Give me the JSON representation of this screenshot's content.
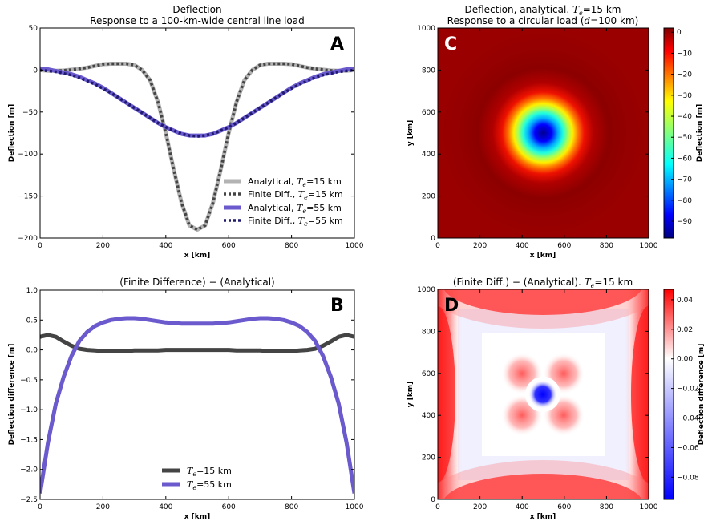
{
  "chart_data": [
    {
      "id": "A",
      "type": "line",
      "panel_letter": "A",
      "title": "Deflection",
      "subtitle": "Response to a 100-km-wide central line load",
      "xlabel": "x [km]",
      "ylabel": "Deflection [m]",
      "xlim": [
        0,
        1000
      ],
      "ylim": [
        -200,
        50
      ],
      "xticks": [
        "0",
        "200",
        "400",
        "600",
        "800",
        "1000"
      ],
      "yticks": [
        "50",
        "0",
        "−50",
        "−100",
        "−150",
        "−200"
      ],
      "legend_position": "lower-right",
      "grid": false,
      "x": [
        0,
        25,
        50,
        75,
        100,
        125,
        150,
        175,
        200,
        225,
        250,
        275,
        300,
        325,
        350,
        375,
        400,
        425,
        450,
        475,
        500,
        525,
        550,
        575,
        600,
        625,
        650,
        675,
        700,
        725,
        750,
        775,
        800,
        825,
        850,
        875,
        900,
        925,
        950,
        975,
        1000
      ],
      "series": [
        {
          "name": "Analytical, Te=15 km",
          "legend_main": "Analytical, ",
          "legend_te": "=15 km",
          "style": "solid",
          "color": "#b3b3b3",
          "values": [
            0,
            -0.8,
            -0.8,
            -0.5,
            0.5,
            1.5,
            3,
            5,
            7,
            7.5,
            7.5,
            7.5,
            6,
            0,
            -12,
            -38,
            -75,
            -118,
            -158,
            -185,
            -190,
            -185,
            -158,
            -118,
            -75,
            -38,
            -12,
            0,
            6,
            7.5,
            7.5,
            7.5,
            7,
            5,
            3,
            1.5,
            0.5,
            -0.5,
            -0.8,
            -0.8,
            0
          ]
        },
        {
          "name": "Finite Diff., Te=15 km",
          "legend_main": "Finite Diff., ",
          "legend_te": "=15 km",
          "style": "dotted",
          "color": "#444444",
          "values": [
            0,
            -0.8,
            -0.8,
            -0.5,
            0.5,
            1.5,
            3,
            5,
            7,
            7.5,
            7.5,
            7.5,
            6,
            0,
            -12,
            -38,
            -75,
            -118,
            -158,
            -185,
            -190,
            -185,
            -158,
            -118,
            -75,
            -38,
            -12,
            0,
            6,
            7.5,
            7.5,
            7.5,
            7,
            5,
            3,
            1.5,
            0.5,
            -0.5,
            -0.8,
            -0.8,
            0
          ]
        },
        {
          "name": "Analytical, Te=55 km",
          "legend_main": "Analytical, ",
          "legend_te": "=55 km",
          "style": "solid",
          "color": "#6a5acd",
          "values": [
            2,
            1,
            -1,
            -3,
            -5,
            -8,
            -12,
            -16,
            -21,
            -27,
            -33,
            -39,
            -45,
            -51,
            -57,
            -63,
            -68,
            -72,
            -76,
            -78,
            -78,
            -78,
            -76,
            -72,
            -68,
            -63,
            -57,
            -51,
            -45,
            -39,
            -33,
            -27,
            -21,
            -16,
            -12,
            -8,
            -5,
            -3,
            -1,
            1,
            2
          ]
        },
        {
          "name": "Finite Diff., Te=55 km",
          "legend_main": "Finite Diff., ",
          "legend_te": "=55 km",
          "style": "dotted",
          "color": "#1f1a6e",
          "values": [
            0,
            -1,
            -2,
            -4,
            -6,
            -9,
            -13,
            -17,
            -22,
            -27,
            -33,
            -39,
            -45,
            -51,
            -57,
            -63,
            -68,
            -72,
            -76,
            -78,
            -79,
            -78,
            -76,
            -72,
            -68,
            -63,
            -57,
            -51,
            -45,
            -39,
            -33,
            -27,
            -22,
            -17,
            -13,
            -9,
            -6,
            -4,
            -2,
            -1,
            0
          ]
        }
      ]
    },
    {
      "id": "B",
      "type": "line",
      "panel_letter": "B",
      "title": "(Finite Difference) − (Analytical)",
      "xlabel": "x [km]",
      "ylabel": "Deflection difference [m]",
      "xlim": [
        0,
        1000
      ],
      "ylim": [
        -2.5,
        1.0
      ],
      "xticks": [
        "0",
        "200",
        "400",
        "600",
        "800",
        "1000"
      ],
      "yticks": [
        "1.0",
        "0.5",
        "0.0",
        "−0.5",
        "−1.0",
        "−1.5",
        "−2.0",
        "−2.5"
      ],
      "legend_position": "lower-center",
      "grid": false,
      "x": [
        0,
        25,
        50,
        75,
        100,
        125,
        150,
        175,
        200,
        225,
        250,
        275,
        300,
        325,
        350,
        375,
        400,
        425,
        450,
        475,
        500,
        525,
        550,
        575,
        600,
        625,
        650,
        675,
        700,
        725,
        750,
        775,
        800,
        825,
        850,
        875,
        900,
        925,
        950,
        975,
        1000
      ],
      "series": [
        {
          "name": "Te=15 km",
          "legend_te": "=15 km",
          "color": "#444444",
          "values": [
            0.22,
            0.25,
            0.22,
            0.14,
            0.07,
            0.02,
            0.0,
            -0.01,
            -0.02,
            -0.02,
            -0.02,
            -0.02,
            -0.01,
            -0.01,
            -0.01,
            -0.01,
            0.0,
            0.0,
            0.0,
            0.0,
            0.0,
            0.0,
            0.0,
            0.0,
            0.0,
            -0.01,
            -0.01,
            -0.01,
            -0.01,
            -0.02,
            -0.02,
            -0.02,
            -0.02,
            -0.01,
            0.0,
            0.02,
            0.07,
            0.14,
            0.22,
            0.25,
            0.22
          ]
        },
        {
          "name": "Te=55 km",
          "legend_te": "=55 km",
          "color": "#6a5acd",
          "values": [
            -2.4,
            -1.55,
            -0.9,
            -0.45,
            -0.1,
            0.15,
            0.3,
            0.4,
            0.46,
            0.5,
            0.52,
            0.53,
            0.53,
            0.52,
            0.5,
            0.48,
            0.46,
            0.45,
            0.44,
            0.44,
            0.44,
            0.44,
            0.44,
            0.45,
            0.46,
            0.48,
            0.5,
            0.52,
            0.53,
            0.53,
            0.52,
            0.5,
            0.46,
            0.4,
            0.3,
            0.15,
            -0.1,
            -0.45,
            -0.9,
            -1.55,
            -2.4
          ]
        }
      ]
    },
    {
      "id": "C",
      "type": "heatmap",
      "panel_letter": "C",
      "title": "Deflection, analytical. ",
      "title_te": "=15 km",
      "subtitle": "Response to a circular load (",
      "subtitle_d": "=100 km)",
      "xlabel": "x [km]",
      "ylabel": "y [km]",
      "xlim": [
        0,
        1000
      ],
      "ylim": [
        0,
        1000
      ],
      "xticks": [
        "0",
        "200",
        "400",
        "600",
        "800",
        "1000"
      ],
      "yticks": [
        "0",
        "200",
        "400",
        "600",
        "800",
        "1000"
      ],
      "colorbar_label": "Deflection [m]",
      "colorbar_ticks": [
        "0",
        "−10",
        "−20",
        "−30",
        "−40",
        "−50",
        "−60",
        "−70",
        "−80",
        "−90"
      ],
      "colorbar_range": [
        -98,
        2
      ],
      "colormap": "jet",
      "center": [
        500,
        500
      ],
      "min_value": -98,
      "background_value": 0
    },
    {
      "id": "D",
      "type": "heatmap",
      "panel_letter": "D",
      "title": "(Finite Diff.) − (Analytical). ",
      "title_te": "=15 km",
      "xlabel": "x [km]",
      "ylabel": "y [km]",
      "xlim": [
        0,
        1000
      ],
      "ylim": [
        0,
        1000
      ],
      "xticks": [
        "0",
        "200",
        "400",
        "600",
        "800",
        "1000"
      ],
      "yticks": [
        "0",
        "200",
        "400",
        "600",
        "800",
        "1000"
      ],
      "colorbar_label": "Deflection difference [m]",
      "colorbar_ticks": [
        "0.04",
        "0.02",
        "0.00",
        "−0.02",
        "−0.04",
        "−0.06",
        "−0.08"
      ],
      "colorbar_range": [
        -0.095,
        0.047
      ],
      "colormap": "bwr",
      "center": [
        500,
        500
      ]
    }
  ]
}
